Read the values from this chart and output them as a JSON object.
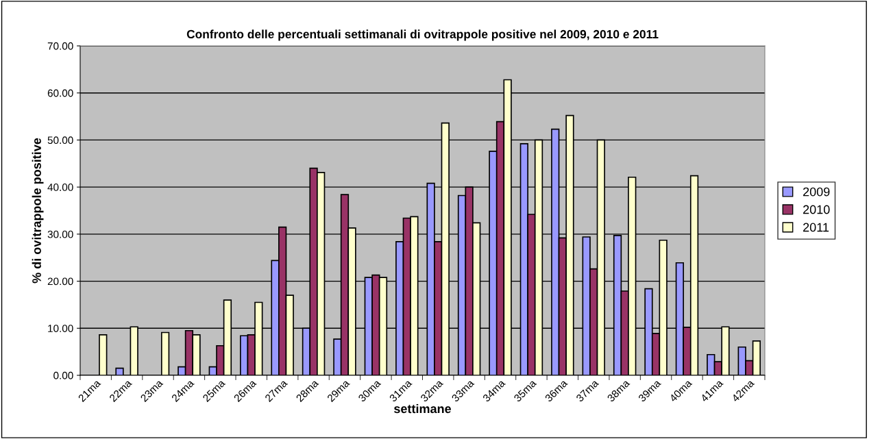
{
  "chart_data": {
    "type": "bar",
    "title": "Confronto delle percentuali settimanali di ovitrappole positive nel 2009, 2010 e 2011",
    "xlabel": "settimane",
    "ylabel": "% di ovitrappole positive",
    "categories": [
      "21ma",
      "22ma",
      "23ma",
      "24ma",
      "25ma",
      "26ma",
      "27ma",
      "28ma",
      "29ma",
      "30ma",
      "31ma",
      "32ma",
      "33ma",
      "34ma",
      "35ma",
      "36ma",
      "37ma",
      "38ma",
      "39ma",
      "40ma",
      "41ma",
      "42ma"
    ],
    "series": [
      {
        "name": "2009",
        "color": "#9999ff",
        "values": [
          null,
          1.5,
          null,
          1.8,
          1.8,
          8.4,
          24.4,
          10.0,
          7.7,
          20.8,
          28.4,
          40.8,
          38.2,
          47.6,
          49.2,
          52.3,
          29.4,
          29.7,
          18.4,
          23.9,
          4.4,
          6.0
        ]
      },
      {
        "name": "2010",
        "color": "#993366",
        "values": [
          null,
          null,
          null,
          9.5,
          6.3,
          8.6,
          31.5,
          44.0,
          38.4,
          21.3,
          33.4,
          28.4,
          40.0,
          53.9,
          34.2,
          29.2,
          22.6,
          17.9,
          8.9,
          10.2,
          2.9,
          3.1
        ]
      },
      {
        "name": "2011",
        "color": "#ffffcc",
        "values": [
          8.6,
          10.3,
          9.1,
          8.6,
          16.0,
          15.5,
          17.0,
          43.1,
          31.3,
          20.8,
          33.7,
          53.6,
          32.4,
          62.8,
          50.0,
          55.2,
          50.0,
          42.1,
          28.7,
          42.4,
          10.3,
          7.3
        ]
      }
    ],
    "ylim": [
      0,
      70
    ],
    "yticks": [
      {
        "value": 0,
        "label": "0.00"
      },
      {
        "value": 10,
        "label": "10.00"
      },
      {
        "value": 20,
        "label": "20.00"
      },
      {
        "value": 30,
        "label": "30.00"
      },
      {
        "value": 40,
        "label": "40.00"
      },
      {
        "value": 50,
        "label": "50.00"
      },
      {
        "value": 60,
        "label": "60.00"
      },
      {
        "value": 70,
        "label": "70.00"
      }
    ],
    "grid": "y",
    "legend": "right"
  }
}
